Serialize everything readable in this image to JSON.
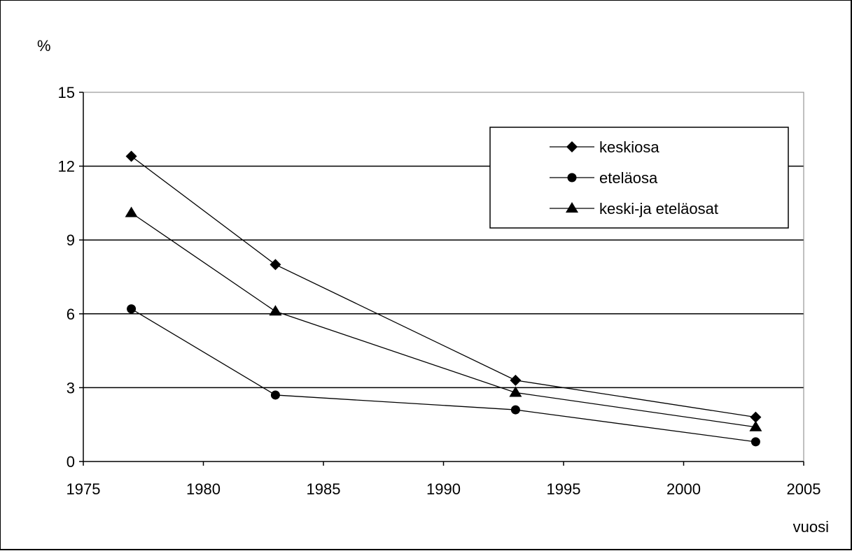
{
  "chart_data": {
    "type": "line",
    "ylabel": "%",
    "xlabel": "vuosi",
    "xlim": [
      1975,
      2005
    ],
    "ylim": [
      0,
      15
    ],
    "x_ticks": [
      "1975",
      "1980",
      "1985",
      "1990",
      "1995",
      "2000",
      "2005"
    ],
    "y_ticks": [
      "0",
      "3",
      "6",
      "9",
      "12",
      "15"
    ],
    "grid": "horizontal",
    "legend_position": "top-right",
    "series": [
      {
        "name": "keskiosa",
        "marker": "diamond",
        "x": [
          1977,
          1983,
          1993,
          2003
        ],
        "y": [
          12.4,
          8.0,
          3.3,
          1.8
        ]
      },
      {
        "name": "eteläosa",
        "marker": "circle",
        "x": [
          1977,
          1983,
          1993,
          2003
        ],
        "y": [
          6.2,
          2.7,
          2.1,
          0.8
        ]
      },
      {
        "name": "keski-ja eteläosat",
        "marker": "triangle",
        "x": [
          1977,
          1983,
          1993,
          2003
        ],
        "y": [
          10.1,
          6.1,
          2.8,
          1.4
        ]
      }
    ]
  }
}
